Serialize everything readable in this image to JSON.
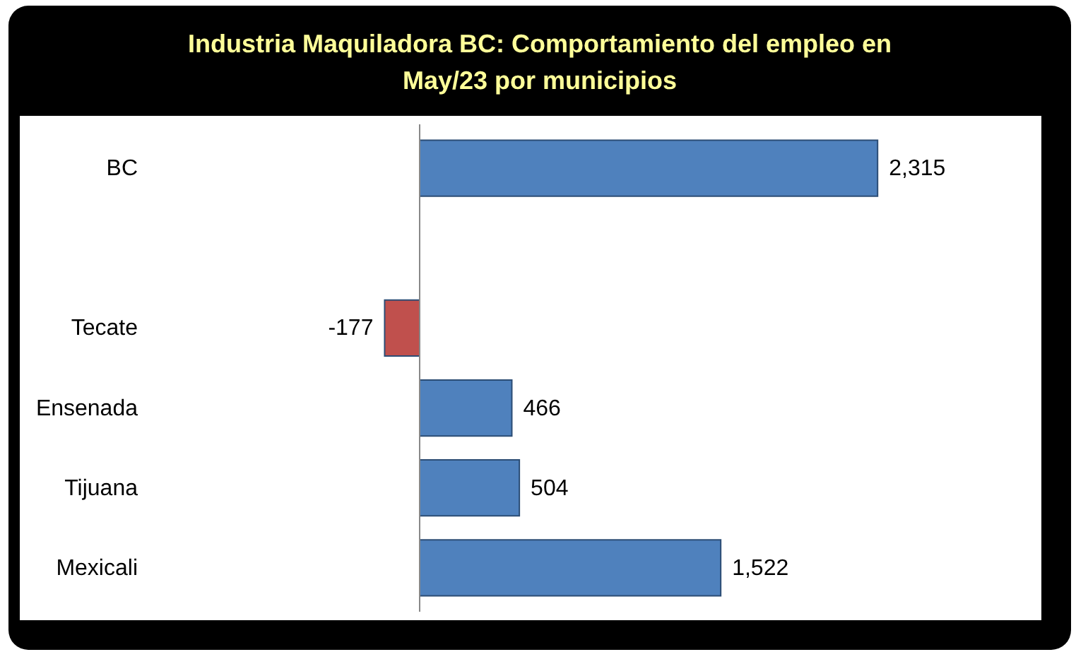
{
  "chart_data": {
    "type": "bar",
    "orientation": "horizontal",
    "title": "Industria Maquiladora BC: Comportamiento del empleo en May/23 por municipios",
    "categories": [
      "BC",
      null,
      "Tecate",
      "Ensenada",
      "Tijuana",
      "Mexicali"
    ],
    "values": [
      2315,
      null,
      -177,
      466,
      504,
      1522
    ],
    "colors": [
      "#4f81bd",
      "#4f81bd",
      "#c0504d",
      "#4f81bd",
      "#4f81bd",
      "#4f81bd"
    ],
    "value_labels": [
      "2,315",
      null,
      "-177",
      "466",
      "504",
      "1,522"
    ]
  }
}
